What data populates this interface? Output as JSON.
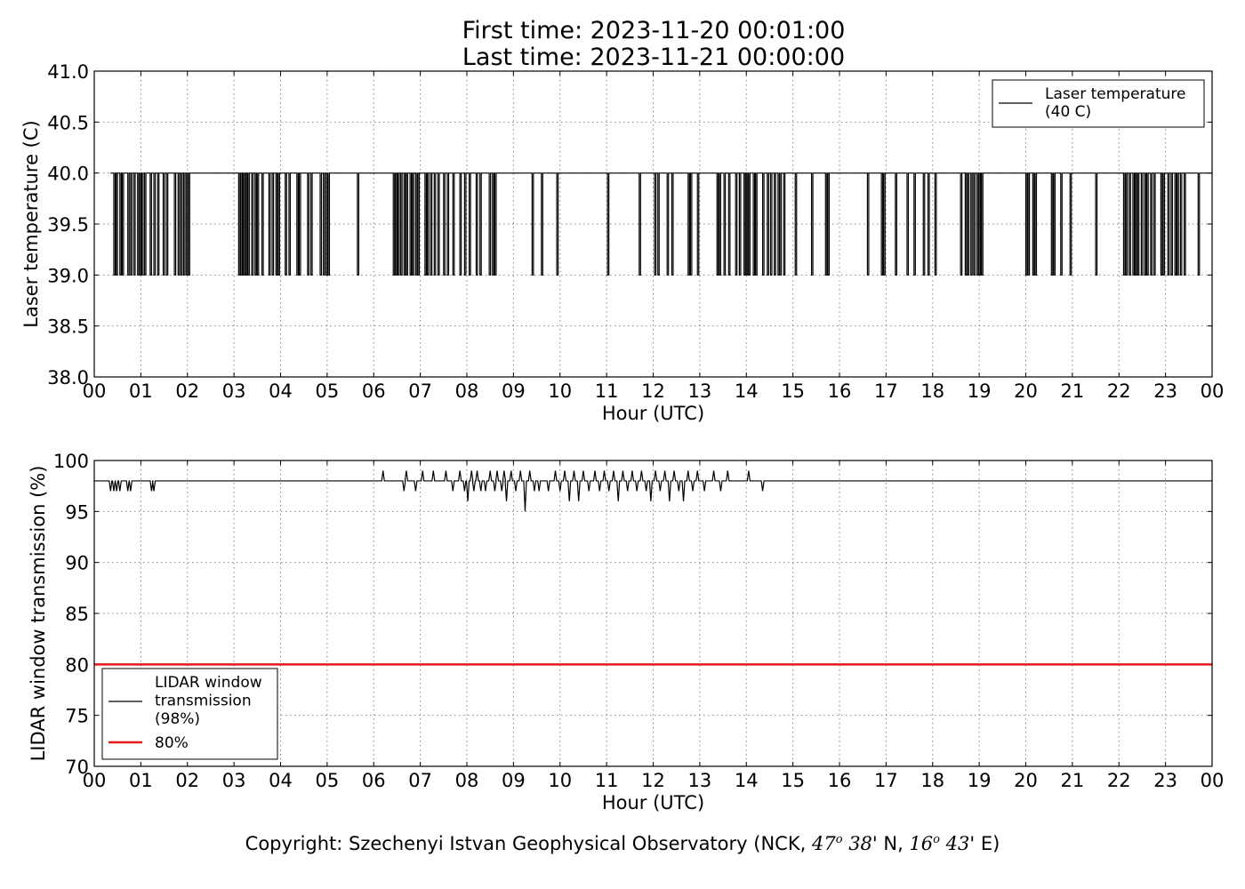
{
  "title_line1": "First time: 2023-11-20 00:01:00",
  "title_line2": "Last time: 2023-11-21 00:00:00",
  "copyright": {
    "prefix": "Copyright: Szechenyi Istvan Geophysical Observatory (NCK, ",
    "lat_deg": "47",
    "lat_sup": "o",
    "lat_min": " 38",
    "lat_suffix": "' N, ",
    "lon_deg": "16",
    "lon_sup": "o",
    "lon_min": " 43",
    "lon_suffix": "' E)"
  },
  "colors": {
    "series": "#000000",
    "threshold": "#e41a1c",
    "grid": "#888888"
  },
  "chart_data": [
    {
      "type": "line",
      "xlabel": "Hour (UTC)",
      "ylabel": "Laser temperature (C)",
      "xlim": [
        0,
        24
      ],
      "ylim": [
        38.0,
        41.0
      ],
      "xticks": [
        "00",
        "01",
        "02",
        "03",
        "04",
        "05",
        "06",
        "07",
        "08",
        "09",
        "10",
        "11",
        "12",
        "13",
        "14",
        "15",
        "16",
        "17",
        "18",
        "19",
        "20",
        "21",
        "22",
        "23",
        "00"
      ],
      "yticks": [
        "38.0",
        "38.5",
        "39.0",
        "39.5",
        "40.0",
        "40.5",
        "41.0"
      ],
      "grid": true,
      "legend_position": "top-right",
      "legend": [
        {
          "label": [
            "Laser temperature",
            "(40 C)"
          ],
          "color": "#000000"
        }
      ],
      "series": [
        {
          "name": "Laser temperature (40 C)",
          "baseline": 40.0,
          "dips_to": 39.0,
          "dip_hours": [
            0.42,
            0.47,
            0.55,
            0.6,
            0.72,
            0.78,
            0.85,
            0.93,
            0.97,
            1.02,
            1.08,
            1.2,
            1.28,
            1.36,
            1.48,
            1.55,
            1.72,
            1.8,
            1.86,
            1.92,
            1.98,
            2.02,
            3.1,
            3.15,
            3.2,
            3.25,
            3.3,
            3.38,
            3.45,
            3.5,
            3.6,
            3.75,
            3.82,
            3.9,
            3.95,
            4.1,
            4.18,
            4.35,
            4.4,
            4.58,
            4.65,
            4.85,
            4.92,
            4.98,
            5.02,
            5.65,
            6.42,
            6.47,
            6.52,
            6.58,
            6.65,
            6.7,
            6.78,
            6.83,
            6.9,
            6.95,
            7.1,
            7.15,
            7.22,
            7.3,
            7.38,
            7.5,
            7.58,
            7.7,
            7.85,
            7.95,
            8.05,
            8.2,
            8.28,
            8.48,
            8.55,
            8.6,
            9.4,
            9.6,
            9.93,
            11.02,
            11.7,
            12.03,
            12.1,
            12.3,
            12.4,
            12.75,
            12.8,
            12.95,
            13.37,
            13.42,
            13.52,
            13.62,
            13.77,
            13.85,
            13.95,
            14.0,
            14.05,
            14.15,
            14.2,
            14.35,
            14.45,
            14.52,
            14.6,
            14.68,
            14.72,
            14.8,
            15.05,
            15.4,
            15.7,
            15.75,
            16.6,
            16.9,
            16.95,
            17.2,
            17.45,
            17.6,
            17.8,
            17.9,
            18.05,
            18.6,
            18.7,
            18.75,
            18.82,
            18.88,
            18.95,
            19.0,
            19.05,
            20.0,
            20.05,
            20.15,
            20.2,
            20.55,
            20.6,
            20.75,
            20.95,
            21.5,
            22.1,
            22.15,
            22.22,
            22.3,
            22.35,
            22.4,
            22.48,
            22.55,
            22.6,
            22.68,
            22.75,
            22.9,
            22.95,
            23.05,
            23.12,
            23.2,
            23.25,
            23.32,
            23.4,
            23.7
          ]
        }
      ]
    },
    {
      "type": "line",
      "xlabel": "Hour (UTC)",
      "ylabel": "LIDAR window transmission (%)",
      "xlim": [
        0,
        24
      ],
      "ylim": [
        70,
        100
      ],
      "xticks": [
        "00",
        "01",
        "02",
        "03",
        "04",
        "05",
        "06",
        "07",
        "08",
        "09",
        "10",
        "11",
        "12",
        "13",
        "14",
        "15",
        "16",
        "17",
        "18",
        "19",
        "20",
        "21",
        "22",
        "23",
        "00"
      ],
      "yticks": [
        "70",
        "75",
        "80",
        "85",
        "90",
        "95",
        "100"
      ],
      "grid": true,
      "legend_position": "bottom-left",
      "legend": [
        {
          "label": [
            "LIDAR window",
            "transmission",
            "(98%)"
          ],
          "color": "#000000"
        },
        {
          "label": [
            "80%"
          ],
          "color": "#e41a1c"
        }
      ],
      "series": [
        {
          "name": "LIDAR window transmission (98%)",
          "baseline": 98,
          "excursions": [
            [
              0.35,
              97
            ],
            [
              0.42,
              97
            ],
            [
              0.48,
              97
            ],
            [
              0.55,
              97
            ],
            [
              0.72,
              97
            ],
            [
              0.78,
              97
            ],
            [
              1.23,
              97
            ],
            [
              1.28,
              97
            ],
            [
              6.2,
              99
            ],
            [
              6.65,
              97
            ],
            [
              6.7,
              99
            ],
            [
              6.9,
              97
            ],
            [
              7.05,
              99
            ],
            [
              7.28,
              99
            ],
            [
              7.55,
              99
            ],
            [
              7.7,
              97
            ],
            [
              7.85,
              99
            ],
            [
              7.95,
              97
            ],
            [
              8.02,
              96
            ],
            [
              8.1,
              99
            ],
            [
              8.15,
              97
            ],
            [
              8.22,
              99
            ],
            [
              8.3,
              97
            ],
            [
              8.4,
              97
            ],
            [
              8.5,
              99
            ],
            [
              8.6,
              97
            ],
            [
              8.65,
              99
            ],
            [
              8.75,
              97
            ],
            [
              8.8,
              99
            ],
            [
              8.85,
              96
            ],
            [
              8.95,
              99
            ],
            [
              9.05,
              97
            ],
            [
              9.15,
              99
            ],
            [
              9.25,
              95
            ],
            [
              9.35,
              99
            ],
            [
              9.45,
              97
            ],
            [
              9.55,
              97
            ],
            [
              9.75,
              97
            ],
            [
              9.9,
              99
            ],
            [
              10.0,
              97
            ],
            [
              10.1,
              99
            ],
            [
              10.2,
              96
            ],
            [
              10.3,
              99
            ],
            [
              10.4,
              96
            ],
            [
              10.5,
              99
            ],
            [
              10.62,
              97
            ],
            [
              10.75,
              99
            ],
            [
              10.85,
              97
            ],
            [
              10.95,
              99
            ],
            [
              11.05,
              97
            ],
            [
              11.15,
              99
            ],
            [
              11.25,
              96
            ],
            [
              11.35,
              99
            ],
            [
              11.45,
              97
            ],
            [
              11.55,
              99
            ],
            [
              11.65,
              97
            ],
            [
              11.75,
              99
            ],
            [
              11.85,
              97
            ],
            [
              11.95,
              96
            ],
            [
              12.05,
              99
            ],
            [
              12.15,
              97
            ],
            [
              12.25,
              99
            ],
            [
              12.35,
              96
            ],
            [
              12.45,
              99
            ],
            [
              12.55,
              97
            ],
            [
              12.65,
              96
            ],
            [
              12.75,
              99
            ],
            [
              12.85,
              97
            ],
            [
              12.95,
              99
            ],
            [
              13.1,
              97
            ],
            [
              13.3,
              99
            ],
            [
              13.45,
              97
            ],
            [
              13.6,
              99
            ],
            [
              14.05,
              99
            ],
            [
              14.35,
              97
            ]
          ]
        },
        {
          "name": "80%",
          "constant": 80
        }
      ]
    }
  ]
}
